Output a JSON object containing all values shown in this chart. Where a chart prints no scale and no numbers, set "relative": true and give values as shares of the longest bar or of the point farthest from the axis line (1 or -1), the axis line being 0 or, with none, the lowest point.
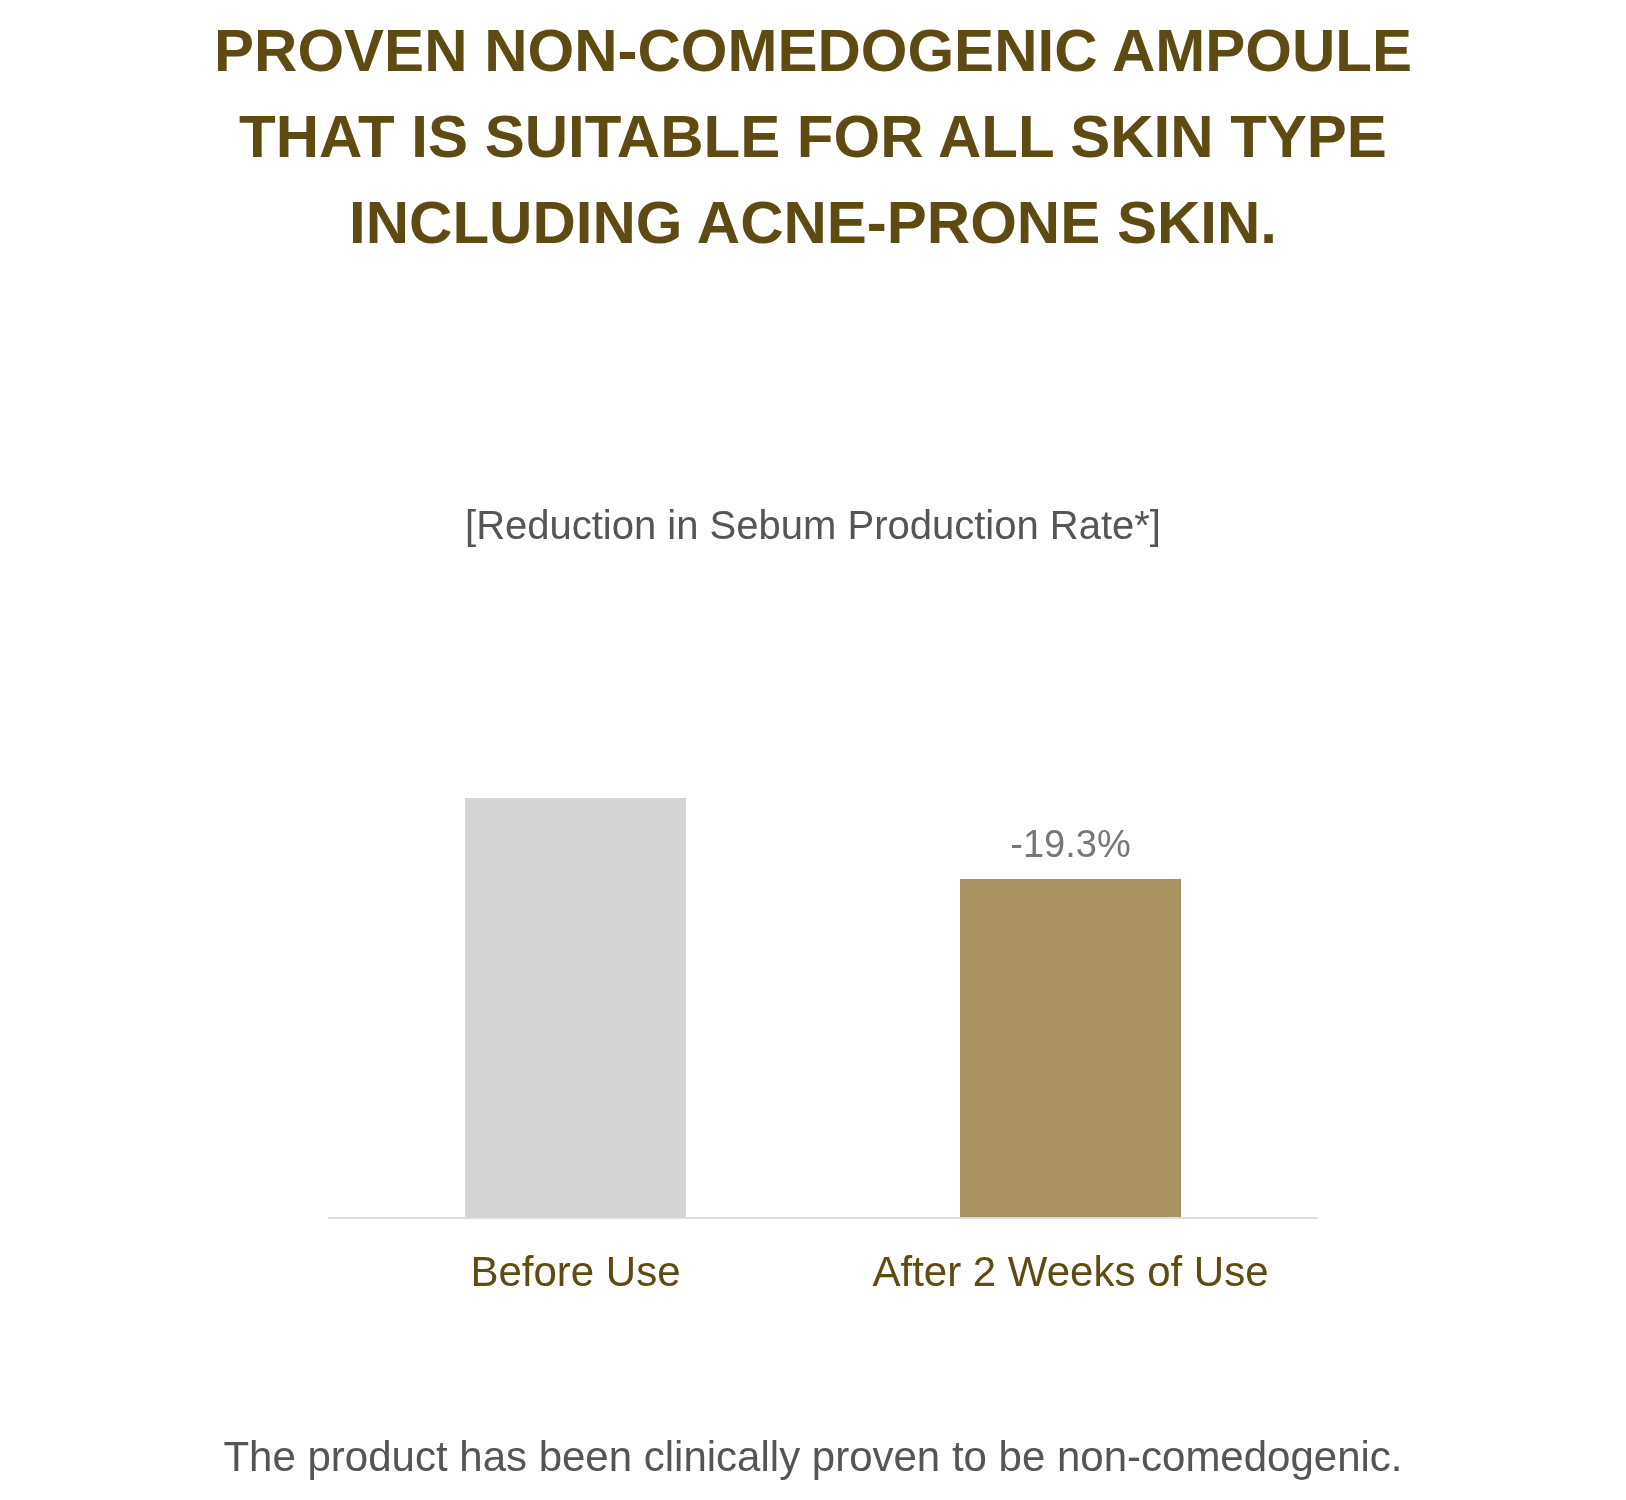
{
  "chart_data": {
    "type": "bar",
    "title": "PROVEN NON-COMEDOGENIC AMPOULE THAT IS SUITABLE FOR ALL SKIN TYPE INCLUDING ACNE-PRONE SKIN.",
    "subtitle": "[Reduction in Sebum Production Rate*]",
    "categories": [
      "Before Use",
      "After 2 Weeks of Use"
    ],
    "values": [
      1,
      0.807
    ],
    "colors": [
      "#d4d4d4",
      "#a89060"
    ],
    "relative": true,
    "annotations": [
      {
        "text": "-19.3%",
        "x": "After 2 Weeks of Use",
        "y": 0.807
      },
      "The product has been clinically proven to be non-comedogenic."
    ]
  }
}
